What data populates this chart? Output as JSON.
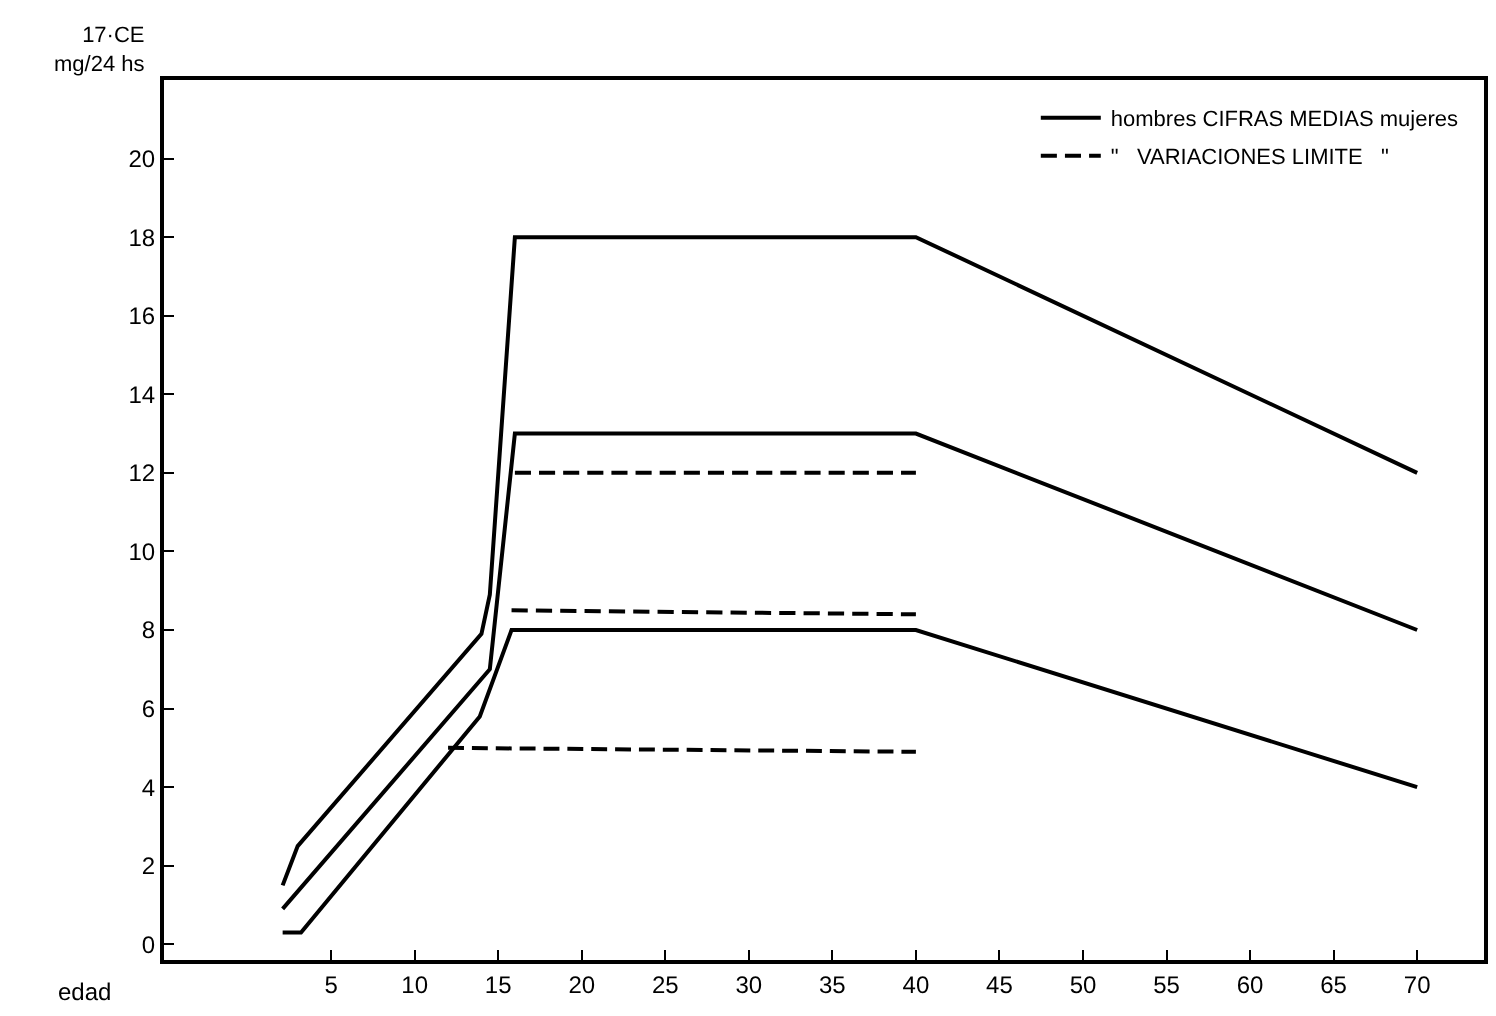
{
  "chart_data": {
    "type": "line",
    "xlabel": "edad",
    "ylabel": "17·CE\nmg/24 hs",
    "xlim": [
      -5,
      74
    ],
    "ylim": [
      -0.4,
      22
    ],
    "xticks": [
      5,
      10,
      15,
      20,
      25,
      30,
      35,
      40,
      45,
      50,
      55,
      60,
      65,
      70
    ],
    "yticks": [
      0,
      2,
      4,
      6,
      8,
      10,
      12,
      14,
      16,
      18,
      20
    ],
    "legend": "top right",
    "marker": "none",
    "series": [
      {
        "color": "#000000",
        "line_style": "solid",
        "x": [
          2.1,
          3,
          14,
          14.5,
          16,
          40,
          70
        ],
        "values": [
          1.5,
          2.5,
          7.9,
          8.9,
          18,
          18,
          12
        ]
      },
      {
        "name": "hombres CIFRAS MEDIAS mujeres",
        "color": "#000000",
        "line_style": "solid",
        "x": [
          2.1,
          14.5,
          16,
          40,
          70
        ],
        "values": [
          0.9,
          7,
          13,
          13,
          8
        ]
      },
      {
        "color": "#000000",
        "line_style": "solid",
        "x": [
          2.1,
          3.2,
          13.9,
          15.8,
          40,
          70
        ],
        "values": [
          0.3,
          0.3,
          5.8,
          8,
          8,
          4
        ]
      },
      {
        "name": "\"   VARIACIONES LIMITE   \"",
        "color": "#000000",
        "line_style": "dashed",
        "x": [
          16,
          40
        ],
        "values": [
          12,
          12
        ]
      },
      {
        "color": "#000000",
        "line_style": "dashed",
        "x": [
          15.8,
          40
        ],
        "values": [
          8.5,
          8.4
        ]
      },
      {
        "color": "#000000",
        "line_style": "dashed",
        "x": [
          12,
          40
        ],
        "values": [
          5,
          4.9
        ]
      }
    ]
  }
}
